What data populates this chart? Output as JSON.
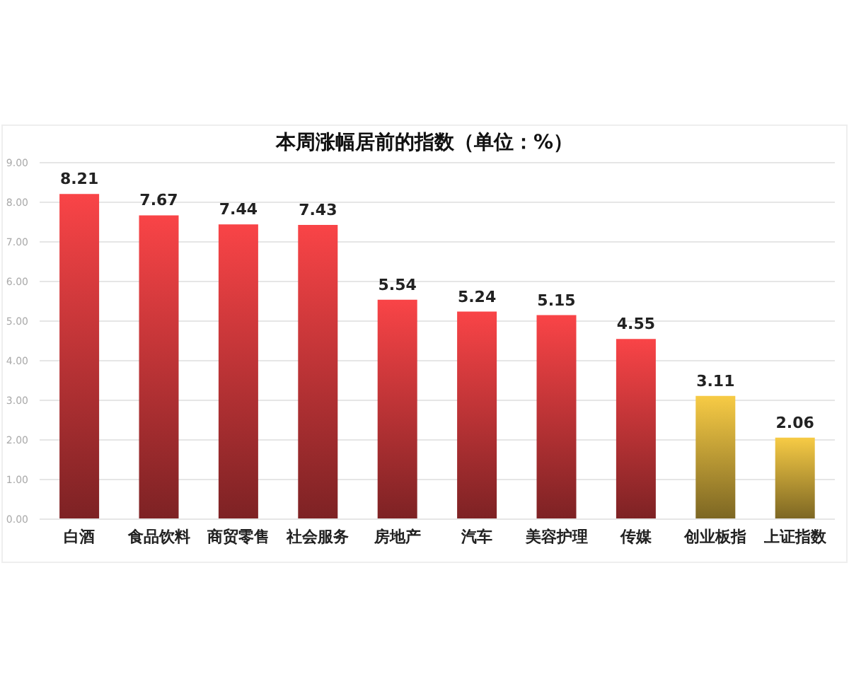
{
  "chart_data": {
    "type": "bar",
    "title": "本周涨幅居前的指数（单位：%）",
    "categories": [
      "白酒",
      "食品饮料",
      "商贸零售",
      "社会服务",
      "房地产",
      "汽车",
      "美容护理",
      "传媒",
      "创业板指",
      "上证指数"
    ],
    "values": [
      8.21,
      7.67,
      7.44,
      7.43,
      5.54,
      5.24,
      5.15,
      4.55,
      3.11,
      2.06
    ],
    "colors": [
      "#f94447",
      "#f94447",
      "#f94447",
      "#f94447",
      "#f94447",
      "#f94447",
      "#f94447",
      "#f94447",
      "#f7cb45",
      "#f7cb45"
    ],
    "ylim": [
      0,
      9
    ],
    "yticks": [
      {
        "value": 0,
        "label": "0.00"
      },
      {
        "value": 1,
        "label": "1.00"
      },
      {
        "value": 2,
        "label": "2.00"
      },
      {
        "value": 3,
        "label": "3.00"
      },
      {
        "value": 4,
        "label": "4.00"
      },
      {
        "value": 5,
        "label": "5.00"
      },
      {
        "value": 6,
        "label": "6.00"
      },
      {
        "value": 7,
        "label": "7.00"
      },
      {
        "value": 8,
        "label": "8.00"
      },
      {
        "value": 9,
        "label": "9.00"
      }
    ],
    "grid": "y",
    "data_labels": true
  }
}
